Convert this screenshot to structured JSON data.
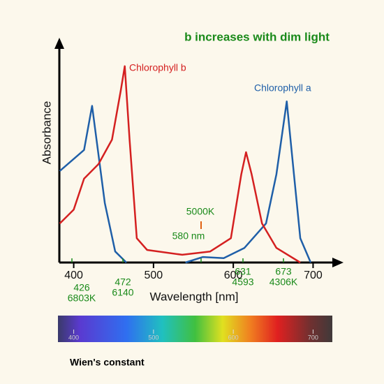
{
  "chart_data": {
    "type": "line",
    "title": "b increases with dim light",
    "y_label": "Absorbance",
    "x_label": "Wavelength [nm]",
    "xlim": [
      382,
      732
    ],
    "ylim": [
      0,
      100
    ],
    "xticks": [
      400,
      500,
      600,
      700
    ],
    "series": [
      {
        "name": "Chlorophyll a",
        "color": "#1f5fa8",
        "x": [
          382.5,
          413,
          423,
          439,
          452,
          466,
          500,
          540,
          562,
          588,
          614,
          641,
          654,
          667,
          676,
          684,
          697
        ],
        "values": [
          41.5,
          51,
          71,
          27,
          5,
          0,
          null,
          0,
          2.5,
          2,
          6.6,
          17.7,
          40,
          73,
          40,
          11,
          0
        ]
      },
      {
        "name": "Chlorophyll b",
        "color": "#d42020",
        "x": [
          382.5,
          400,
          413,
          431,
          448,
          459,
          464,
          470,
          479,
          492,
          536,
          571,
          597,
          610,
          616,
          623,
          636,
          654,
          684
        ],
        "values": [
          17.7,
          24,
          38,
          44.6,
          55.7,
          78,
          89,
          55.7,
          11,
          5.7,
          3.5,
          5,
          11,
          40,
          50,
          40,
          17.7,
          6.6,
          0
        ]
      }
    ],
    "annotations": [
      "426",
      "6803K",
      "472",
      "6140",
      "631",
      "4593",
      "673",
      "4306K",
      "5000K",
      "580 nm"
    ],
    "spectrum_ticks": [
      400,
      500,
      600,
      700
    ]
  },
  "footer": "Wien's constant"
}
